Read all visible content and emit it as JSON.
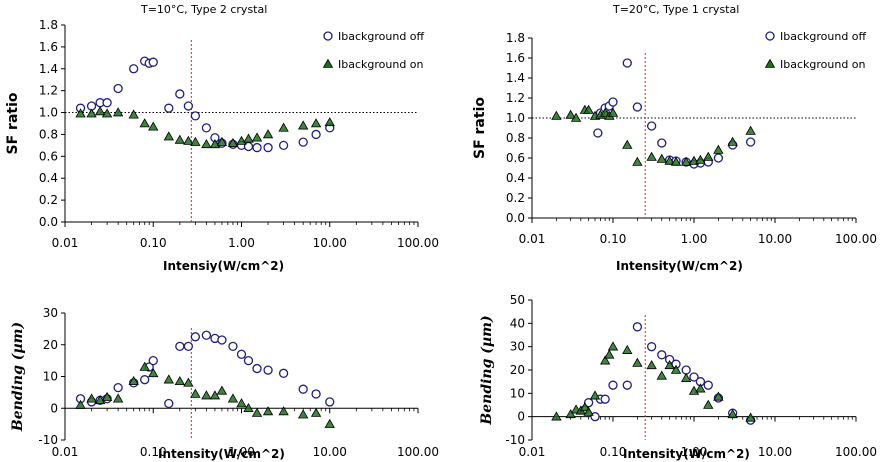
{
  "chart_data": [
    {
      "type": "scatter",
      "title": "T=10°C, Type 2 crystal",
      "xlabel": "Intensiy(W/cm^2)",
      "ylabel": "SF ratio",
      "xscale": "log",
      "xlim": [
        0.01,
        100
      ],
      "ylim": [
        0,
        1.8
      ],
      "xticks": [
        "0.01",
        "0.10",
        "1.00",
        "10.00",
        "100.00"
      ],
      "yticks": [
        "0.0",
        "0.2",
        "0.4",
        "0.6",
        "0.8",
        "1.0",
        "1.2",
        "1.4",
        "1.6",
        "1.8"
      ],
      "hline": 1.0,
      "vline": 0.27,
      "legend": "top-right",
      "series": [
        {
          "name": "Ibackground off",
          "marker": "circle",
          "color": "#1f1f7a",
          "points": [
            [
              0.015,
              1.04
            ],
            [
              0.02,
              1.06
            ],
            [
              0.025,
              1.09
            ],
            [
              0.03,
              1.09
            ],
            [
              0.04,
              1.22
            ],
            [
              0.06,
              1.4
            ],
            [
              0.08,
              1.47
            ],
            [
              0.09,
              1.45
            ],
            [
              0.1,
              1.46
            ],
            [
              0.15,
              1.04
            ],
            [
              0.2,
              1.17
            ],
            [
              0.25,
              1.06
            ],
            [
              0.3,
              0.97
            ],
            [
              0.4,
              0.86
            ],
            [
              0.5,
              0.77
            ],
            [
              0.6,
              0.72
            ],
            [
              0.8,
              0.71
            ],
            [
              1.0,
              0.7
            ],
            [
              1.2,
              0.69
            ],
            [
              1.5,
              0.68
            ],
            [
              2.0,
              0.68
            ],
            [
              3.0,
              0.7
            ],
            [
              5.0,
              0.73
            ],
            [
              7.0,
              0.8
            ],
            [
              10.0,
              0.86
            ]
          ]
        },
        {
          "name": "Ibackground on",
          "marker": "triangle",
          "color": "#1f6e1f",
          "points": [
            [
              0.015,
              0.99
            ],
            [
              0.02,
              0.99
            ],
            [
              0.025,
              1.01
            ],
            [
              0.03,
              0.99
            ],
            [
              0.04,
              1.0
            ],
            [
              0.06,
              0.98
            ],
            [
              0.08,
              0.9
            ],
            [
              0.1,
              0.87
            ],
            [
              0.15,
              0.78
            ],
            [
              0.2,
              0.75
            ],
            [
              0.25,
              0.74
            ],
            [
              0.3,
              0.73
            ],
            [
              0.4,
              0.71
            ],
            [
              0.5,
              0.71
            ],
            [
              0.6,
              0.73
            ],
            [
              0.8,
              0.72
            ],
            [
              1.0,
              0.74
            ],
            [
              1.2,
              0.76
            ],
            [
              1.5,
              0.77
            ],
            [
              2.0,
              0.8
            ],
            [
              3.0,
              0.86
            ],
            [
              5.0,
              0.88
            ],
            [
              7.0,
              0.9
            ],
            [
              10.0,
              0.91
            ]
          ]
        }
      ]
    },
    {
      "type": "scatter",
      "title": "T=20°C, Type 1 crystal",
      "xlabel": "Intensity(W/cm^2)",
      "ylabel": "SF ratio",
      "xscale": "log",
      "xlim": [
        0.01,
        100
      ],
      "ylim": [
        0,
        1.8
      ],
      "xticks": [
        "0.01",
        "0.10",
        "1.00",
        "10.00",
        "100.00"
      ],
      "yticks": [
        "0.0",
        "0.2",
        "0.4",
        "0.6",
        "0.8",
        "1.0",
        "1.2",
        "1.4",
        "1.6",
        "1.8"
      ],
      "hline": 1.0,
      "vline": 0.25,
      "legend": "top-right",
      "series": [
        {
          "name": "Ibackground off",
          "marker": "circle",
          "color": "#1f1f7a",
          "points": [
            [
              0.065,
              0.85
            ],
            [
              0.07,
              1.05
            ],
            [
              0.08,
              1.1
            ],
            [
              0.09,
              1.12
            ],
            [
              0.1,
              1.16
            ],
            [
              0.15,
              1.55
            ],
            [
              0.2,
              1.11
            ],
            [
              0.3,
              0.92
            ],
            [
              0.4,
              0.75
            ],
            [
              0.5,
              0.58
            ],
            [
              0.6,
              0.57
            ],
            [
              0.8,
              0.56
            ],
            [
              1.0,
              0.54
            ],
            [
              1.2,
              0.55
            ],
            [
              1.5,
              0.56
            ],
            [
              2.0,
              0.6
            ],
            [
              3.0,
              0.73
            ],
            [
              5.0,
              0.76
            ]
          ]
        },
        {
          "name": "Ibackground on",
          "marker": "triangle",
          "color": "#1f6e1f",
          "points": [
            [
              0.02,
              1.02
            ],
            [
              0.03,
              1.03
            ],
            [
              0.035,
              1.0
            ],
            [
              0.045,
              1.08
            ],
            [
              0.05,
              1.08
            ],
            [
              0.06,
              1.02
            ],
            [
              0.07,
              1.03
            ],
            [
              0.08,
              1.05
            ],
            [
              0.09,
              1.02
            ],
            [
              0.1,
              1.05
            ],
            [
              0.15,
              0.73
            ],
            [
              0.2,
              0.56
            ],
            [
              0.3,
              0.61
            ],
            [
              0.4,
              0.59
            ],
            [
              0.5,
              0.57
            ],
            [
              0.6,
              0.56
            ],
            [
              0.8,
              0.56
            ],
            [
              1.0,
              0.57
            ],
            [
              1.2,
              0.58
            ],
            [
              1.5,
              0.61
            ],
            [
              2.0,
              0.68
            ],
            [
              3.0,
              0.76
            ],
            [
              5.0,
              0.87
            ]
          ]
        }
      ]
    },
    {
      "type": "scatter",
      "title": "",
      "xlabel": "Intensity(W/cm^2)",
      "ylabel": "Bending (µm)",
      "xscale": "log",
      "xlim": [
        0.01,
        100
      ],
      "ylim": [
        -10,
        30
      ],
      "xticks": [
        "0.01",
        "0.10",
        "1.00",
        "10.00",
        "100.00"
      ],
      "yticks": [
        "-10",
        "0",
        "10",
        "20",
        "30"
      ],
      "vline": 0.27,
      "series": [
        {
          "name": "Ibackground off",
          "marker": "circle",
          "color": "#1f1f7a",
          "points": [
            [
              0.015,
              3.0
            ],
            [
              0.02,
              2.0
            ],
            [
              0.025,
              2.5
            ],
            [
              0.03,
              3.0
            ],
            [
              0.04,
              6.5
            ],
            [
              0.06,
              8.0
            ],
            [
              0.08,
              9.0
            ],
            [
              0.09,
              13.0
            ],
            [
              0.1,
              15.0
            ],
            [
              0.15,
              1.5
            ],
            [
              0.2,
              19.5
            ],
            [
              0.25,
              19.5
            ],
            [
              0.3,
              22.5
            ],
            [
              0.4,
              23.0
            ],
            [
              0.5,
              22.0
            ],
            [
              0.6,
              21.5
            ],
            [
              0.8,
              19.5
            ],
            [
              1.0,
              17.0
            ],
            [
              1.2,
              15.0
            ],
            [
              1.5,
              12.5
            ],
            [
              2.0,
              12.0
            ],
            [
              3.0,
              11.0
            ],
            [
              5.0,
              6.0
            ],
            [
              7.0,
              4.5
            ],
            [
              10.0,
              2.0
            ]
          ]
        },
        {
          "name": "Ibackground on",
          "marker": "triangle",
          "color": "#1f6e1f",
          "points": [
            [
              0.015,
              1.0
            ],
            [
              0.02,
              3.0
            ],
            [
              0.025,
              2.5
            ],
            [
              0.03,
              3.5
            ],
            [
              0.04,
              3.0
            ],
            [
              0.06,
              8.5
            ],
            [
              0.08,
              13.0
            ],
            [
              0.1,
              11.0
            ],
            [
              0.15,
              9.0
            ],
            [
              0.2,
              8.5
            ],
            [
              0.25,
              8.0
            ],
            [
              0.3,
              4.5
            ],
            [
              0.4,
              4.0
            ],
            [
              0.5,
              4.0
            ],
            [
              0.6,
              5.5
            ],
            [
              0.8,
              3.0
            ],
            [
              1.0,
              1.5
            ],
            [
              1.2,
              0.0
            ],
            [
              1.5,
              -1.5
            ],
            [
              2.0,
              -1.0
            ],
            [
              3.0,
              -1.0
            ],
            [
              5.0,
              -2.0
            ],
            [
              7.0,
              -1.5
            ],
            [
              10.0,
              -5.0
            ]
          ]
        }
      ]
    },
    {
      "type": "scatter",
      "title": "",
      "xlabel": "Intensity(W/cm^2)",
      "ylabel": "Bending (µm)",
      "xscale": "log",
      "xlim": [
        0.01,
        100
      ],
      "ylim": [
        -10,
        50
      ],
      "xticks": [
        "0.01",
        "0.10",
        "1.00",
        "10.00",
        "100.00"
      ],
      "yticks": [
        "-10",
        "0",
        "10",
        "20",
        "30",
        "40",
        "50"
      ],
      "vline": 0.25,
      "series": [
        {
          "name": "Ibackground off",
          "marker": "circle",
          "color": "#1f1f7a",
          "points": [
            [
              0.045,
              3.0
            ],
            [
              0.05,
              6.0
            ],
            [
              0.06,
              0.0
            ],
            [
              0.07,
              7.5
            ],
            [
              0.08,
              7.5
            ],
            [
              0.1,
              13.5
            ],
            [
              0.15,
              13.5
            ],
            [
              0.2,
              38.5
            ],
            [
              0.3,
              30.0
            ],
            [
              0.4,
              26.5
            ],
            [
              0.5,
              24.5
            ],
            [
              0.6,
              22.5
            ],
            [
              0.8,
              20.0
            ],
            [
              1.0,
              17.0
            ],
            [
              1.2,
              15.0
            ],
            [
              1.5,
              13.5
            ],
            [
              2.0,
              8.0
            ],
            [
              3.0,
              1.5
            ],
            [
              5.0,
              -1.5
            ]
          ]
        },
        {
          "name": "Ibackground on",
          "marker": "triangle",
          "color": "#1f6e1f",
          "points": [
            [
              0.02,
              0.0
            ],
            [
              0.03,
              1.0
            ],
            [
              0.035,
              3.0
            ],
            [
              0.04,
              2.5
            ],
            [
              0.045,
              4.0
            ],
            [
              0.05,
              2.0
            ],
            [
              0.06,
              9.0
            ],
            [
              0.08,
              24.0
            ],
            [
              0.09,
              26.5
            ],
            [
              0.1,
              30.0
            ],
            [
              0.15,
              28.5
            ],
            [
              0.2,
              23.0
            ],
            [
              0.3,
              22.0
            ],
            [
              0.4,
              17.5
            ],
            [
              0.5,
              22.0
            ],
            [
              0.6,
              20.0
            ],
            [
              0.8,
              16.5
            ],
            [
              1.0,
              11.0
            ],
            [
              1.2,
              12.0
            ],
            [
              1.5,
              5.0
            ],
            [
              2.0,
              8.5
            ],
            [
              3.0,
              1.0
            ],
            [
              5.0,
              -0.5
            ]
          ]
        }
      ]
    }
  ]
}
